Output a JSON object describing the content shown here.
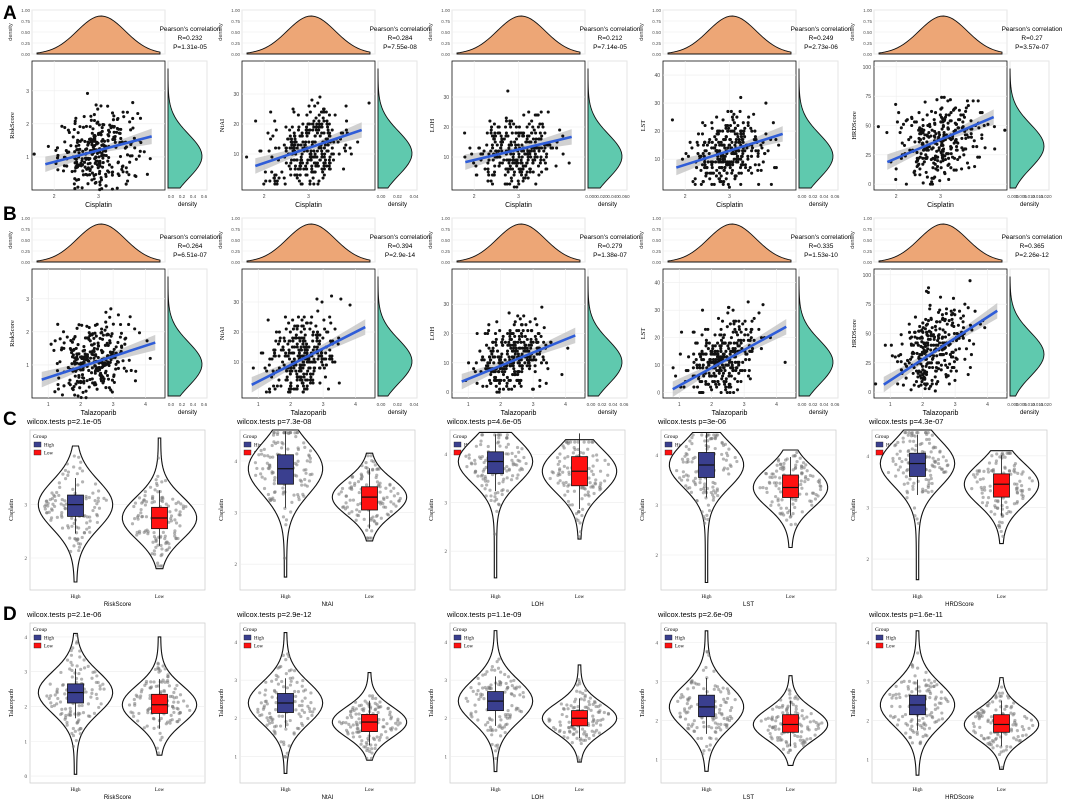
{
  "figure": {
    "panel_labels": [
      "A",
      "B",
      "C",
      "D"
    ],
    "colors": {
      "x_density": "#EDA676",
      "y_density": "#5FC9AE",
      "fit_line": "#2F5DD8",
      "ci_band": "#BDBDBD",
      "point": "#111111",
      "high_box": "#3A3F8F",
      "low_box": "#FF1010",
      "violin_point": "#777777"
    },
    "scatter_common": {
      "corr_title": "Pearson's correlation",
      "density_label": "density",
      "x_density_ticks": [
        "0.00",
        "0.25",
        "0.50",
        "0.75",
        "1.00"
      ]
    },
    "violin_common": {
      "legend_title": "Group",
      "legend_items": [
        "High",
        "Low"
      ],
      "x_ticks": [
        "High",
        "Low"
      ]
    }
  },
  "chart_data": [
    {
      "type": "scatter",
      "panel": "A",
      "xlabel": "Cisplatin",
      "ylabel": "RiskScore",
      "r": "R=0.232",
      "p": "P=1.31e-05",
      "yticks": [
        "1",
        "2",
        "3"
      ],
      "xticks": [
        "2",
        "3"
      ],
      "ydens_ticks": [
        "0.0",
        "0.2",
        "0.4",
        "0.6"
      ],
      "xlim": [
        1.5,
        4.5
      ],
      "ylim": [
        0,
        3.9
      ],
      "x_mean": 3.0,
      "x_sd": 0.45,
      "y_mean": 1.2,
      "y_sd": 0.7,
      "fit": {
        "intercept": 0.15,
        "slope": 0.35
      },
      "n": 300
    },
    {
      "type": "scatter",
      "panel": "A",
      "xlabel": "Cisplatin",
      "ylabel": "NtAI",
      "r": "R=0.284",
      "p": "P=7.55e-08",
      "yticks": [
        "10",
        "20",
        "30"
      ],
      "xticks": [
        "2",
        "3"
      ],
      "ydens_ticks": [
        "0.00",
        "0.02",
        "0.04"
      ],
      "xlim": [
        1.5,
        4.5
      ],
      "ylim": [
        -2,
        41
      ],
      "x_mean": 3.0,
      "x_sd": 0.45,
      "y_mean": 12,
      "y_sd": 8,
      "fit": {
        "intercept": -3,
        "slope": 5
      },
      "n": 300
    },
    {
      "type": "scatter",
      "panel": "A",
      "xlabel": "Cisplatin",
      "ylabel": "LOH",
      "r": "R=0.212",
      "p": "P=7.14e-05",
      "yticks": [
        "10",
        "20",
        "30"
      ],
      "xticks": [
        "2",
        "3"
      ],
      "ydens_ticks": [
        "0.000",
        "0.020",
        "0.040",
        "0.060"
      ],
      "xlim": [
        1.5,
        4.5
      ],
      "ylim": [
        -1,
        42
      ],
      "x_mean": 3.0,
      "x_sd": 0.45,
      "y_mean": 12,
      "y_sd": 7,
      "fit": {
        "intercept": 2,
        "slope": 3.5
      },
      "n": 300
    },
    {
      "type": "scatter",
      "panel": "A",
      "xlabel": "Cisplatin",
      "ylabel": "LST",
      "r": "R=0.249",
      "p": "P=2.73e-06",
      "yticks": [
        "10",
        "20",
        "30",
        "40"
      ],
      "xticks": [
        "2",
        "3"
      ],
      "ydens_ticks": [
        "0.00",
        "0.02",
        "0.04",
        "0.06"
      ],
      "xlim": [
        1.5,
        4.5
      ],
      "ylim": [
        -1,
        45
      ],
      "x_mean": 3.0,
      "x_sd": 0.45,
      "y_mean": 13,
      "y_sd": 8,
      "fit": {
        "intercept": -2,
        "slope": 5
      },
      "n": 300
    },
    {
      "type": "scatter",
      "panel": "A",
      "xlabel": "Cisplatin",
      "ylabel": "HRDScore",
      "r": "R=0.27",
      "p": "P=3.57e-07",
      "yticks": [
        "0",
        "25",
        "50",
        "75",
        "100"
      ],
      "xticks": [
        "2",
        "3"
      ],
      "ydens_ticks": [
        "0.000",
        "0.005",
        "0.010",
        "0.015",
        "0.020"
      ],
      "xlim": [
        1.5,
        4.5
      ],
      "ylim": [
        -5,
        105
      ],
      "x_mean": 3.0,
      "x_sd": 0.45,
      "y_mean": 38,
      "y_sd": 20,
      "fit": {
        "intercept": -10,
        "slope": 16
      },
      "n": 300
    },
    {
      "type": "scatter",
      "panel": "B",
      "xlabel": "Talazoparib",
      "ylabel": "RiskScore",
      "r": "R=0.264",
      "p": "P=6.51e-07",
      "yticks": [
        "1",
        "2",
        "3"
      ],
      "xticks": [
        "1",
        "2",
        "3",
        "4"
      ],
      "ydens_ticks": [
        "0.0",
        "0.2",
        "0.4",
        "0.6"
      ],
      "xlim": [
        0.5,
        4.6
      ],
      "ylim": [
        0,
        3.9
      ],
      "x_mean": 2.4,
      "x_sd": 0.55,
      "y_mean": 1.2,
      "y_sd": 0.7,
      "fit": {
        "intercept": 0.3,
        "slope": 0.32
      },
      "n": 300
    },
    {
      "type": "scatter",
      "panel": "B",
      "xlabel": "Talazoparib",
      "ylabel": "NtAI",
      "r": "R=0.394",
      "p": "P=2.9e-14",
      "yticks": [
        "10",
        "20",
        "30"
      ],
      "xticks": [
        "1",
        "2",
        "3",
        "4"
      ],
      "ydens_ticks": [
        "0.00",
        "0.02",
        "0.04"
      ],
      "xlim": [
        0.5,
        4.6
      ],
      "ylim": [
        -2,
        41
      ],
      "x_mean": 2.4,
      "x_sd": 0.55,
      "y_mean": 12,
      "y_sd": 8,
      "fit": {
        "intercept": -2,
        "slope": 5.5
      },
      "n": 300
    },
    {
      "type": "scatter",
      "panel": "B",
      "xlabel": "Talazoparib",
      "ylabel": "LOH",
      "r": "R=0.279",
      "p": "P=1.38e-07",
      "yticks": [
        "0",
        "10",
        "20",
        "30"
      ],
      "xticks": [
        "1",
        "2",
        "3",
        "4"
      ],
      "ydens_ticks": [
        "0.00",
        "0.02",
        "0.04",
        "0.06"
      ],
      "xlim": [
        0.5,
        4.6
      ],
      "ylim": [
        -2,
        42
      ],
      "x_mean": 2.4,
      "x_sd": 0.55,
      "y_mean": 12,
      "y_sd": 7,
      "fit": {
        "intercept": 0,
        "slope": 4.5
      },
      "n": 300
    },
    {
      "type": "scatter",
      "panel": "B",
      "xlabel": "Talazoparib",
      "ylabel": "LST",
      "r": "R=0.335",
      "p": "P=1.53e-10",
      "yticks": [
        "0",
        "10",
        "20",
        "30",
        "40"
      ],
      "xticks": [
        "1",
        "2",
        "3",
        "4"
      ],
      "ydens_ticks": [
        "0.00",
        "0.02",
        "0.04",
        "0.06"
      ],
      "xlim": [
        0.5,
        4.6
      ],
      "ylim": [
        -2,
        45
      ],
      "x_mean": 2.4,
      "x_sd": 0.55,
      "y_mean": 13,
      "y_sd": 8,
      "fit": {
        "intercept": -4,
        "slope": 6.5
      },
      "n": 300
    },
    {
      "type": "scatter",
      "panel": "B",
      "xlabel": "Talazoparib",
      "ylabel": "HRDScore",
      "r": "R=0.365",
      "p": "P=2.26e-12",
      "yticks": [
        "0",
        "25",
        "50",
        "75",
        "100"
      ],
      "xticks": [
        "1",
        "2",
        "3",
        "4"
      ],
      "ydens_ticks": [
        "0.000",
        "0.005",
        "0.010",
        "0.015",
        "0.020"
      ],
      "xlim": [
        0.5,
        4.6
      ],
      "ylim": [
        -5,
        105
      ],
      "x_mean": 2.4,
      "x_sd": 0.55,
      "y_mean": 38,
      "y_sd": 20,
      "fit": {
        "intercept": -8,
        "slope": 18
      },
      "n": 300
    },
    {
      "type": "violin",
      "panel": "C",
      "title": "wilcox.tests p=2.1e-05",
      "xlabel": "RiskScore",
      "ylabel": "Cisplatin",
      "yticks": [
        "2",
        "3"
      ],
      "yvals": [
        2,
        3
      ],
      "ylim": [
        1.4,
        4.4
      ],
      "groups": [
        {
          "name": "High",
          "q1": 2.78,
          "median": 3.0,
          "q3": 3.18,
          "min": 1.55,
          "max": 4.1,
          "mean": 3.0,
          "sd": 0.45
        },
        {
          "name": "Low",
          "q1": 2.55,
          "median": 2.75,
          "q3": 2.95,
          "min": 1.8,
          "max": 4.25,
          "mean": 2.75,
          "sd": 0.4
        }
      ]
    },
    {
      "type": "violin",
      "panel": "C",
      "title": "wilcox.tests p=7.3e-08",
      "xlabel": "NtAI",
      "ylabel": "Cisplatin",
      "yticks": [
        "2",
        "3",
        "4"
      ],
      "yvals": [
        2,
        3,
        4
      ],
      "ylim": [
        1.5,
        4.6
      ],
      "groups": [
        {
          "name": "High",
          "q1": 3.55,
          "median": 3.85,
          "q3": 4.12,
          "min": 1.75,
          "max": 4.6,
          "mean": 3.85,
          "sd": 0.5
        },
        {
          "name": "Low",
          "q1": 3.05,
          "median": 3.3,
          "q3": 3.5,
          "min": 2.45,
          "max": 4.15,
          "mean": 3.3,
          "sd": 0.35
        }
      ]
    },
    {
      "type": "violin",
      "panel": "C",
      "title": "wilcox.tests p=4.6e-05",
      "xlabel": "LOH",
      "ylabel": "Cisplatin",
      "yticks": [
        "2",
        "3",
        "4"
      ],
      "yvals": [
        2,
        3,
        4
      ],
      "ylim": [
        1.2,
        4.5
      ],
      "groups": [
        {
          "name": "High",
          "q1": 3.6,
          "median": 3.85,
          "q3": 4.05,
          "min": 1.45,
          "max": 4.45,
          "mean": 3.85,
          "sd": 0.45
        },
        {
          "name": "Low",
          "q1": 3.35,
          "median": 3.65,
          "q3": 3.95,
          "min": 2.25,
          "max": 4.3,
          "mean": 3.65,
          "sd": 0.45
        }
      ]
    },
    {
      "type": "violin",
      "panel": "C",
      "title": "wilcox.tests p=3e-06",
      "xlabel": "LST",
      "ylabel": "Cisplatin",
      "yticks": [
        "2",
        "3",
        "4"
      ],
      "yvals": [
        2,
        3,
        4
      ],
      "ylim": [
        1.3,
        4.5
      ],
      "groups": [
        {
          "name": "High",
          "q1": 3.55,
          "median": 3.8,
          "q3": 4.05,
          "min": 1.45,
          "max": 4.45,
          "mean": 3.8,
          "sd": 0.45
        },
        {
          "name": "Low",
          "q1": 3.15,
          "median": 3.35,
          "q3": 3.6,
          "min": 2.15,
          "max": 4.1,
          "mean": 3.35,
          "sd": 0.4
        }
      ]
    },
    {
      "type": "violin",
      "panel": "C",
      "title": "wilcox.tests p=4.3e-07",
      "xlabel": "HRDScore",
      "ylabel": "Cisplatin",
      "yticks": [
        "2",
        "3",
        "4"
      ],
      "yvals": [
        2,
        3,
        4
      ],
      "ylim": [
        1.4,
        4.5
      ],
      "groups": [
        {
          "name": "High",
          "q1": 3.6,
          "median": 3.85,
          "q3": 4.05,
          "min": 1.6,
          "max": 4.5,
          "mean": 3.85,
          "sd": 0.45
        },
        {
          "name": "Low",
          "q1": 3.2,
          "median": 3.45,
          "q3": 3.65,
          "min": 2.3,
          "max": 4.1,
          "mean": 3.45,
          "sd": 0.4
        }
      ]
    },
    {
      "type": "violin",
      "panel": "D",
      "title": "wilcox.tests p=2.1e-06",
      "xlabel": "RiskScore",
      "ylabel": "Talazoparib",
      "yticks": [
        "0",
        "1",
        "2",
        "3",
        "4"
      ],
      "yvals": [
        0,
        1,
        2,
        3,
        4
      ],
      "ylim": [
        -0.2,
        4.4
      ],
      "groups": [
        {
          "name": "High",
          "q1": 2.1,
          "median": 2.4,
          "q3": 2.65,
          "min": 0.05,
          "max": 4.1,
          "mean": 2.4,
          "sd": 0.6
        },
        {
          "name": "Low",
          "q1": 1.8,
          "median": 2.05,
          "q3": 2.35,
          "min": 0.6,
          "max": 4.0,
          "mean": 2.05,
          "sd": 0.55
        }
      ]
    },
    {
      "type": "violin",
      "panel": "D",
      "title": "wilcox.tests p=2.9e-12",
      "xlabel": "NtAI",
      "ylabel": "Talazoparib",
      "yticks": [
        "1",
        "2",
        "3",
        "4"
      ],
      "yvals": [
        1,
        2,
        3,
        4
      ],
      "ylim": [
        0.3,
        4.5
      ],
      "groups": [
        {
          "name": "High",
          "q1": 2.15,
          "median": 2.4,
          "q3": 2.65,
          "min": 0.55,
          "max": 4.25,
          "mean": 2.4,
          "sd": 0.55
        },
        {
          "name": "Low",
          "q1": 1.65,
          "median": 1.9,
          "q3": 2.1,
          "min": 0.9,
          "max": 3.2,
          "mean": 1.9,
          "sd": 0.4
        }
      ]
    },
    {
      "type": "violin",
      "panel": "D",
      "title": "wilcox.tests p=1.1e-09",
      "xlabel": "LOH",
      "ylabel": "Talazoparib",
      "yticks": [
        "1",
        "2",
        "3",
        "4"
      ],
      "yvals": [
        1,
        2,
        3,
        4
      ],
      "ylim": [
        0.3,
        4.5
      ],
      "groups": [
        {
          "name": "High",
          "q1": 2.2,
          "median": 2.45,
          "q3": 2.7,
          "min": 0.6,
          "max": 4.3,
          "mean": 2.45,
          "sd": 0.55
        },
        {
          "name": "Low",
          "q1": 1.8,
          "median": 2.0,
          "q3": 2.2,
          "min": 0.85,
          "max": 3.4,
          "mean": 2.0,
          "sd": 0.4
        }
      ]
    },
    {
      "type": "violin",
      "panel": "D",
      "title": "wilcox.tests p=2.6e-09",
      "xlabel": "LST",
      "ylabel": "Talazoparib",
      "yticks": [
        "1",
        "2",
        "3",
        "4"
      ],
      "yvals": [
        1,
        2,
        3,
        4
      ],
      "ylim": [
        0.4,
        4.5
      ],
      "groups": [
        {
          "name": "High",
          "q1": 2.1,
          "median": 2.35,
          "q3": 2.65,
          "min": 0.7,
          "max": 4.3,
          "mean": 2.35,
          "sd": 0.55
        },
        {
          "name": "Low",
          "q1": 1.7,
          "median": 1.9,
          "q3": 2.15,
          "min": 0.85,
          "max": 3.15,
          "mean": 1.9,
          "sd": 0.4
        }
      ]
    },
    {
      "type": "violin",
      "panel": "D",
      "title": "wilcox.tests p=1.6e-11",
      "xlabel": "HRDScore",
      "ylabel": "Talazoparib",
      "yticks": [
        "1",
        "2",
        "3",
        "4"
      ],
      "yvals": [
        1,
        2,
        3,
        4
      ],
      "ylim": [
        0.4,
        4.5
      ],
      "groups": [
        {
          "name": "High",
          "q1": 2.15,
          "median": 2.4,
          "q3": 2.65,
          "min": 0.6,
          "max": 4.3,
          "mean": 2.4,
          "sd": 0.55
        },
        {
          "name": "Low",
          "q1": 1.7,
          "median": 1.9,
          "q3": 2.15,
          "min": 0.75,
          "max": 3.1,
          "mean": 1.9,
          "sd": 0.4
        }
      ]
    }
  ]
}
